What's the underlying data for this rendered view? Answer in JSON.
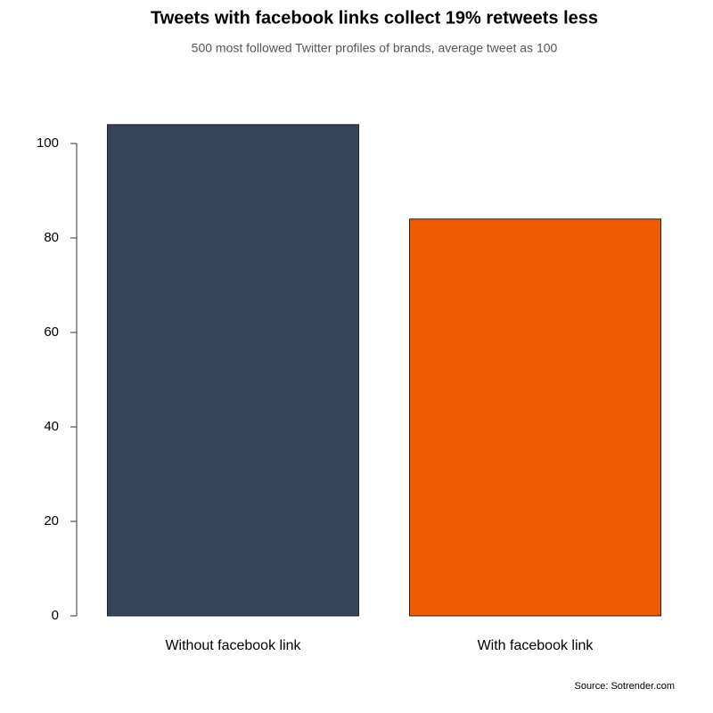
{
  "chart_data": {
    "type": "bar",
    "title": "Tweets with facebook links collect 19% retweets less",
    "subtitle": "500 most followed Twitter profiles of brands, average tweet as 100",
    "source": "Source: Sotrender.com",
    "categories": [
      "Without facebook link",
      "With facebook link"
    ],
    "values": [
      104,
      84
    ],
    "colors": [
      "#34455b",
      "#ef5b00"
    ],
    "ylim": [
      0,
      104
    ],
    "yticks": [
      0,
      20,
      40,
      60,
      80,
      100
    ],
    "grid": false
  }
}
